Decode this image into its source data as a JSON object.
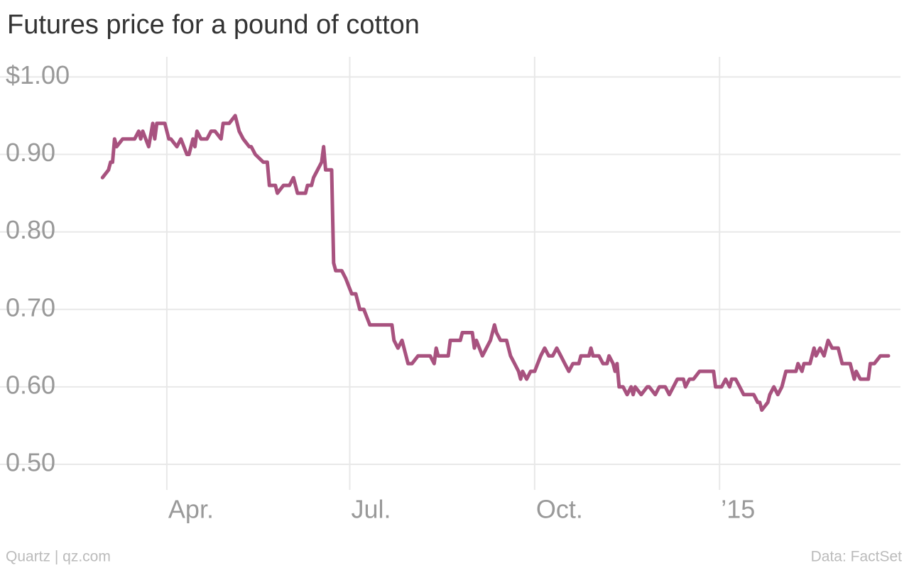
{
  "chart_data": {
    "type": "line",
    "title": "Futures price for a pound of cotton",
    "source_left": "Quartz | qz.com",
    "source_right": "Data: FactSet",
    "x": [
      -32,
      -29,
      -28,
      -27,
      -26,
      -25,
      -22,
      -16,
      -14,
      -13,
      -12,
      -9,
      -7,
      -6,
      -5,
      -1,
      1,
      2,
      5,
      7,
      10,
      11,
      13,
      14,
      15,
      17,
      20,
      22,
      24,
      27,
      28,
      31,
      34,
      36,
      38,
      41,
      42,
      44,
      48,
      50,
      51,
      54,
      55,
      58,
      61,
      63,
      64,
      65,
      69,
      70,
      72,
      73,
      75,
      77,
      78,
      79,
      82,
      83,
      84,
      87,
      89,
      92,
      94,
      96,
      98,
      101,
      112,
      113,
      115,
      117,
      120,
      122,
      125,
      131,
      133,
      134,
      135,
      140,
      141,
      146,
      147,
      152,
      153,
      154,
      157,
      159,
      161,
      163,
      164,
      166,
      169,
      171,
      173,
      175,
      176,
      177,
      179,
      181,
      183,
      186,
      188,
      190,
      192,
      194,
      196,
      198,
      200,
      202,
      205,
      206,
      210,
      211,
      212,
      215,
      217,
      219,
      220,
      222,
      223,
      224,
      225,
      227,
      229,
      231,
      232,
      233,
      236,
      239,
      240,
      243,
      245,
      248,
      250,
      252,
      254,
      257,
      258,
      260,
      262,
      265,
      272,
      273,
      276,
      278,
      280,
      281,
      283,
      285,
      287,
      292,
      294,
      295,
      296,
      299,
      300,
      302,
      304,
      306,
      308,
      313,
      314,
      316,
      317,
      320,
      322,
      323,
      325,
      327,
      329,
      331,
      334,
      336,
      340,
      342,
      343,
      345,
      349,
      350,
      352,
      355,
      359
    ],
    "series": [
      {
        "name": "Cotton",
        "color": "#a8527f",
        "values": [
          0.87,
          0.88,
          0.89,
          0.89,
          0.92,
          0.91,
          0.92,
          0.92,
          0.93,
          0.92,
          0.93,
          0.91,
          0.94,
          0.92,
          0.94,
          0.94,
          0.92,
          0.92,
          0.91,
          0.92,
          0.9,
          0.9,
          0.92,
          0.91,
          0.93,
          0.92,
          0.92,
          0.93,
          0.93,
          0.92,
          0.94,
          0.94,
          0.95,
          0.93,
          0.92,
          0.91,
          0.91,
          0.9,
          0.89,
          0.89,
          0.86,
          0.86,
          0.85,
          0.86,
          0.86,
          0.87,
          0.86,
          0.85,
          0.85,
          0.86,
          0.86,
          0.87,
          0.88,
          0.89,
          0.91,
          0.88,
          0.88,
          0.76,
          0.75,
          0.75,
          0.74,
          0.72,
          0.72,
          0.7,
          0.7,
          0.68,
          0.68,
          0.66,
          0.65,
          0.66,
          0.63,
          0.63,
          0.64,
          0.64,
          0.63,
          0.65,
          0.64,
          0.64,
          0.66,
          0.66,
          0.67,
          0.67,
          0.65,
          0.66,
          0.64,
          0.65,
          0.66,
          0.68,
          0.67,
          0.66,
          0.66,
          0.64,
          0.63,
          0.62,
          0.61,
          0.62,
          0.61,
          0.62,
          0.62,
          0.64,
          0.65,
          0.64,
          0.64,
          0.65,
          0.64,
          0.63,
          0.62,
          0.63,
          0.63,
          0.64,
          0.64,
          0.65,
          0.64,
          0.64,
          0.63,
          0.63,
          0.64,
          0.63,
          0.62,
          0.63,
          0.6,
          0.6,
          0.59,
          0.6,
          0.59,
          0.6,
          0.59,
          0.6,
          0.6,
          0.59,
          0.6,
          0.6,
          0.59,
          0.6,
          0.61,
          0.61,
          0.6,
          0.61,
          0.61,
          0.62,
          0.62,
          0.6,
          0.6,
          0.61,
          0.6,
          0.61,
          0.61,
          0.6,
          0.59,
          0.59,
          0.58,
          0.58,
          0.57,
          0.58,
          0.59,
          0.6,
          0.59,
          0.6,
          0.62,
          0.62,
          0.63,
          0.62,
          0.63,
          0.63,
          0.65,
          0.64,
          0.65,
          0.64,
          0.66,
          0.65,
          0.65,
          0.63,
          0.63,
          0.61,
          0.62,
          0.61,
          0.61,
          0.63,
          0.63,
          0.64,
          0.64
        ]
      }
    ],
    "xlim": [
      -83,
      365
    ],
    "xticks": [
      {
        "value": 0,
        "label": "Apr."
      },
      {
        "value": 91,
        "label": "Jul."
      },
      {
        "value": 183,
        "label": "Oct."
      },
      {
        "value": 275,
        "label": "’15"
      }
    ],
    "ylim": [
      0.467,
      1.026
    ],
    "yticks": [
      {
        "value": 0.5,
        "label": "0.50"
      },
      {
        "value": 0.6,
        "label": "0.60"
      },
      {
        "value": 0.7,
        "label": "0.70"
      },
      {
        "value": 0.8,
        "label": "0.80"
      },
      {
        "value": 0.9,
        "label": "0.90"
      },
      {
        "value": 1.0,
        "label": "$1.00"
      }
    ],
    "grid": true
  }
}
